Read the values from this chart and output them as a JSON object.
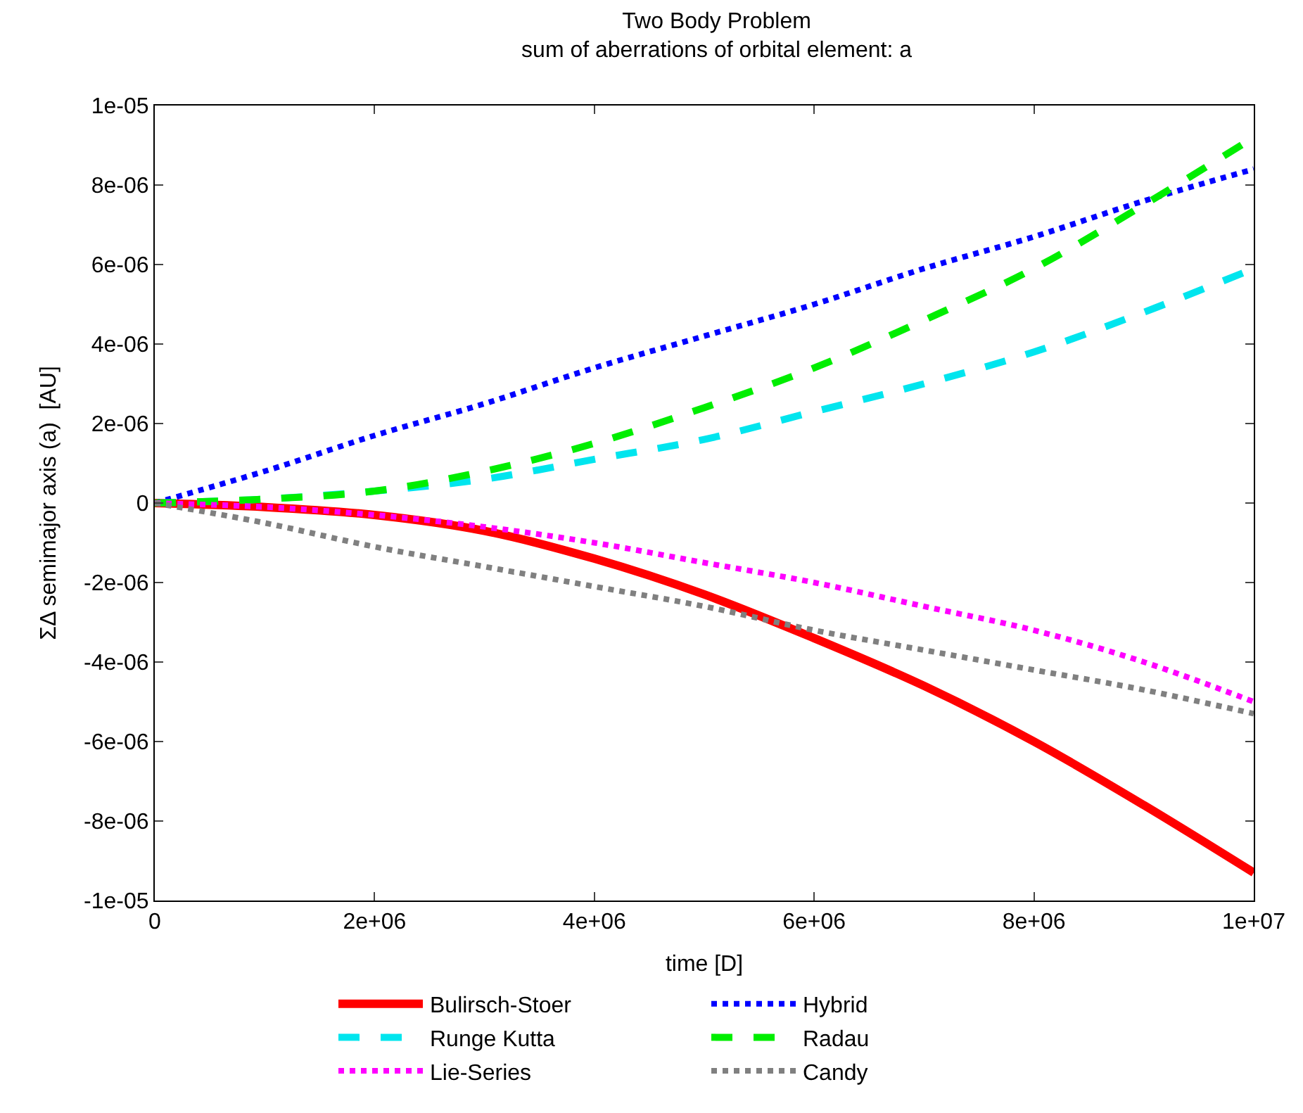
{
  "chart_data": {
    "type": "line",
    "title": "Two Body Problem",
    "subtitle": "sum of aberrations of orbital element: a",
    "xlabel": "time [D]",
    "ylabel": "ΣΔ semimajor axis (a)  [AU]",
    "x": [
      0,
      1000000,
      2000000,
      3000000,
      4000000,
      5000000,
      6000000,
      7000000,
      8000000,
      9000000,
      10000000
    ],
    "series": [
      {
        "name": "Bulirsch-Stoer",
        "color": "#ff0000",
        "line_style": "solid",
        "values": [
          0,
          -1e-07,
          -3e-07,
          -7e-07,
          -1.4e-06,
          -2.3e-06,
          -3.4e-06,
          -4.6e-06,
          -6e-06,
          -7.6e-06,
          -9.3e-06
        ]
      },
      {
        "name": "Hybrid",
        "color": "#0000ff",
        "line_style": "dotted",
        "values": [
          0,
          8e-07,
          1.7e-06,
          2.5e-06,
          3.4e-06,
          4.2e-06,
          5e-06,
          5.9e-06,
          6.7e-06,
          7.6e-06,
          8.4e-06
        ]
      },
      {
        "name": "Runge Kutta",
        "color": "#00e5ee",
        "line_style": "dashed",
        "values": [
          0,
          1e-07,
          3e-07,
          6e-07,
          1.1e-06,
          1.6e-06,
          2.3e-06,
          3e-06,
          3.8e-06,
          4.8e-06,
          5.9e-06
        ]
      },
      {
        "name": "Radau",
        "color": "#00ee00",
        "line_style": "dashed",
        "values": [
          0,
          1e-07,
          3e-07,
          8e-07,
          1.5e-06,
          2.4e-06,
          3.4e-06,
          4.6e-06,
          5.9e-06,
          7.5e-06,
          9.2e-06
        ]
      },
      {
        "name": "Lie-Series",
        "color": "#ff00ff",
        "line_style": "dotted",
        "values": [
          0,
          -1e-07,
          -3e-07,
          -6e-07,
          -1e-06,
          -1.5e-06,
          -2e-06,
          -2.6e-06,
          -3.2e-06,
          -4e-06,
          -5e-06
        ]
      },
      {
        "name": "Candy",
        "color": "#808080",
        "line_style": "dotted",
        "values": [
          0,
          -5e-07,
          -1.1e-06,
          -1.6e-06,
          -2.1e-06,
          -2.6e-06,
          -3.2e-06,
          -3.7e-06,
          -4.2e-06,
          -4.7e-06,
          -5.3e-06
        ]
      }
    ],
    "xlim": [
      0,
      10000000
    ],
    "xticks": [
      0,
      {
        "value": 2000000,
        "label": "2e+06"
      },
      {
        "value": 4000000,
        "label": "4e+06"
      },
      {
        "value": 6000000,
        "label": "6e+06"
      },
      {
        "value": 8000000,
        "label": "8e+06"
      },
      {
        "value": 10000000,
        "label": "1e+07"
      }
    ],
    "ylim": [
      -1e-05,
      1e-05
    ],
    "yticks": [
      {
        "value": -1e-05,
        "label": "-1e-05"
      },
      {
        "value": -8e-06,
        "label": "-8e-06"
      },
      {
        "value": -6e-06,
        "label": "-6e-06"
      },
      {
        "value": -4e-06,
        "label": "-4e-06"
      },
      {
        "value": -2e-06,
        "label": "-2e-06"
      },
      0,
      {
        "value": 2e-06,
        "label": "2e-06"
      },
      {
        "value": 4e-06,
        "label": "4e-06"
      },
      {
        "value": 6e-06,
        "label": "6e-06"
      },
      {
        "value": 8e-06,
        "label": "8e-06"
      },
      {
        "value": 1e-05,
        "label": "1e-05"
      }
    ],
    "legend": "bottom",
    "marker": "none"
  }
}
